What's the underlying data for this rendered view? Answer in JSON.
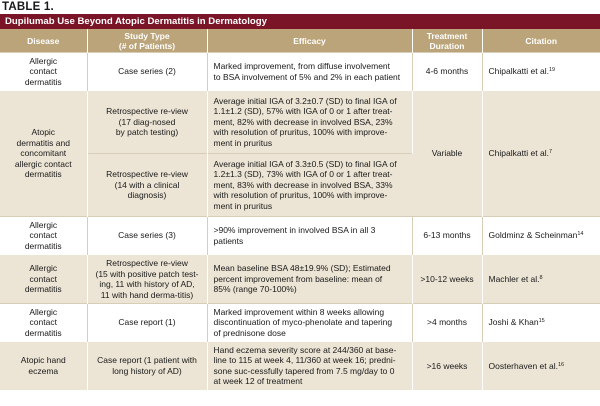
{
  "table_label": "TABLE 1.",
  "title": "Dupilumab Use Beyond Atopic Dermatitis in Dermatology",
  "headers": {
    "disease": "Disease",
    "study_type": "Study Type\n(# of Patients)",
    "efficacy": "Efficacy",
    "duration": "Treatment\nDuration",
    "citation": "Citation"
  },
  "rows": [
    {
      "disease": "Allergic\ncontact\ndermatitis",
      "study": "Case series (2)",
      "efficacy": "Marked improvement, from diffuse involvement\nto BSA involvement of 5% and 2% in each patient",
      "duration": "4-6 months",
      "citation": "Chipalkatti et al.",
      "ref": "19"
    },
    {
      "disease": "Atopic\ndermatitis and\nconcomitant\nallergic contact\ndermatitis",
      "study": "Retrospective re-view\n(17 diag-nosed\nby patch testing)",
      "efficacy": "Average initial IGA of 3.2±0.7 (SD) to final IGA of\n1.1±1.2 (SD), 57% with IGA of 0 or 1 after treat-\nment, 82% with decrease in involved BSA, 23%\nwith resolution of pruritus, 100% with improve-\nment in pruritus",
      "duration": "Variable",
      "citation": "Chipalkatti et al.",
      "ref": "7"
    },
    {
      "study": "Retrospective re-view\n(14 with a clinical\ndiagnosis)",
      "efficacy": "Average initial IGA of 3.3±0.5 (SD) to final IGA of\n1.2±1.3 (SD), 73% with IGA of 0 or 1 after treat-\nment, 83% with decrease in involved BSA, 33%\nwith resolution of pruritus, 100% with improve-\nment in pruritus"
    },
    {
      "disease": "Allergic\ncontact\ndermatitis",
      "study": "Case series (3)",
      "efficacy": ">90% improvement in involved BSA in all 3\npatients",
      "duration": "6-13 months",
      "citation": "Goldminz & Scheinman",
      "ref": "14"
    },
    {
      "disease": "Allergic\ncontact\ndermatitis",
      "study": "Retrospective re-view\n(15 with positive patch test-\ning, 11 with history of AD,\n11 with hand derma-titis)",
      "efficacy": "Mean baseline BSA 48±19.9% (SD); Estimated\npercent improvement from baseline: mean of\n85% (range 70-100%)",
      "duration": ">10-12 weeks",
      "citation": "Machler et al.",
      "ref": "8"
    },
    {
      "disease": "Allergic\ncontact\ndermatitis",
      "study": "Case report (1)",
      "efficacy": "Marked improvement within 8 weeks allowing\ndiscontinuation of myco-phenolate and tapering\nof prednisone dose",
      "duration": ">4 months",
      "citation": "Joshi & Khan",
      "ref": "15"
    },
    {
      "disease": "Atopic hand\neczema",
      "study": "Case report (1 patient with\nlong history of AD)",
      "efficacy": "Hand eczema severity score at 244/360 at base-\nline to 115 at week 4, 11/360 at week 16; predni-\nsone suc-cessfully tapered from 7.5 mg/day to 0\nat week 12 of treatment",
      "duration": ">16 weeks",
      "citation": "Oosterhaven et al.",
      "ref": "16"
    }
  ]
}
